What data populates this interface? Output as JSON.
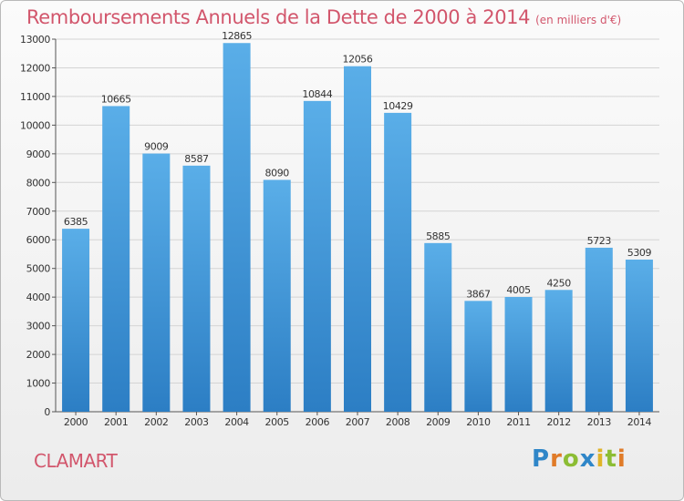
{
  "title": "Remboursements Annuels de la Dette de 2000 à 2014",
  "unit_note": "(en milliers d'€)",
  "city": "CLAMART",
  "logo": {
    "text": "Proxiti"
  },
  "colors": {
    "title": "#d2566c",
    "bar_top": "#5aaee8",
    "bar_bottom": "#2c7ec4",
    "grid": "#d4d4d4"
  },
  "chart_data": {
    "type": "bar",
    "title": "Remboursements Annuels de la Dette de 2000 à 2014",
    "categories": [
      "2000",
      "2001",
      "2002",
      "2003",
      "2004",
      "2005",
      "2006",
      "2007",
      "2008",
      "2009",
      "2010",
      "2011",
      "2012",
      "2013",
      "2014"
    ],
    "values": [
      6385,
      10665,
      9009,
      8587,
      12865,
      8090,
      10844,
      12056,
      10429,
      5885,
      3867,
      4005,
      4250,
      5723,
      5309
    ],
    "ylim": [
      0,
      13000
    ],
    "yticks": [
      0,
      1000,
      2000,
      3000,
      4000,
      5000,
      6000,
      7000,
      8000,
      9000,
      10000,
      11000,
      12000,
      13000
    ],
    "grid": true,
    "data_labels": true
  }
}
